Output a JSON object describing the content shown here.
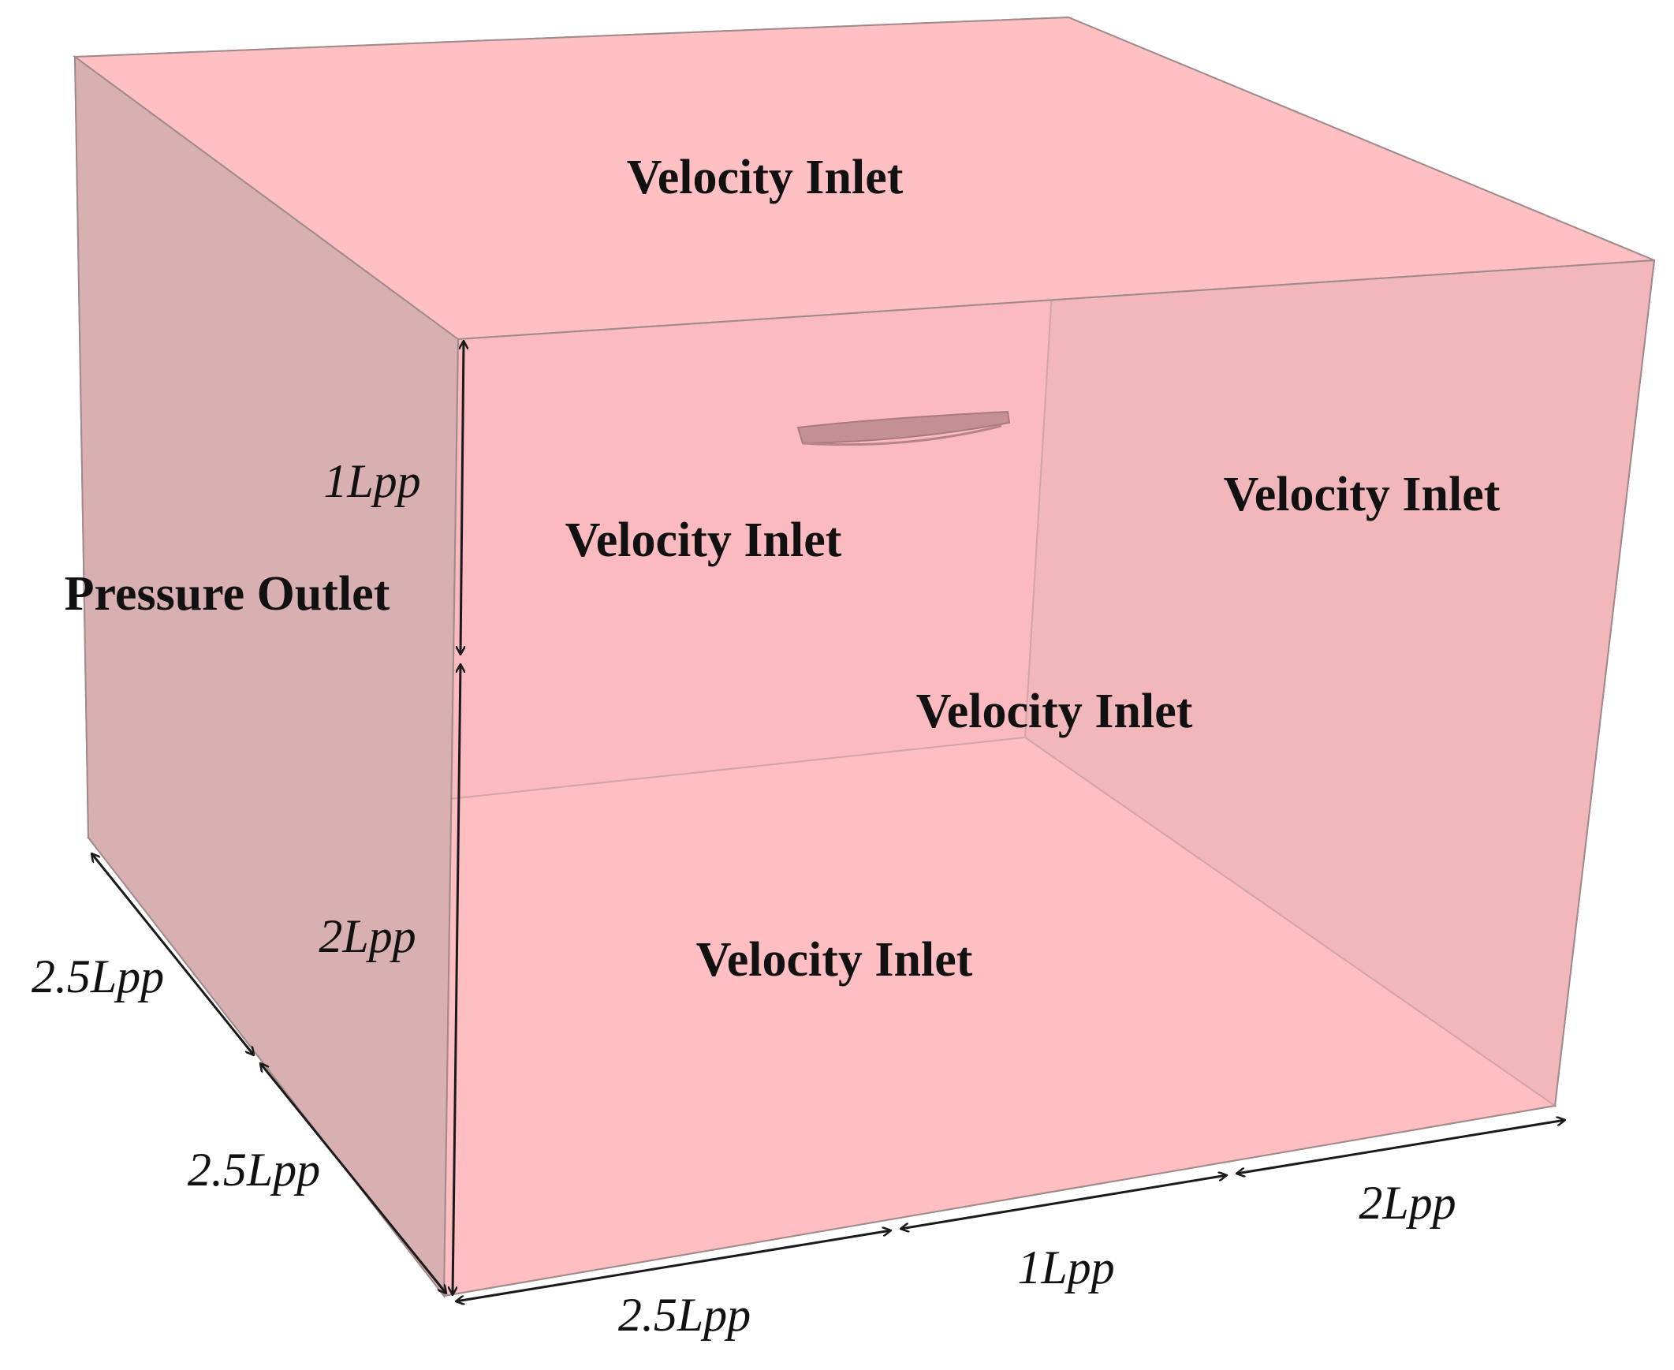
{
  "colors": {
    "face_light": "#ffc0c4",
    "face_dark": "#dfb2b4",
    "edge": "#a08a8a",
    "ship": "#c48f95",
    "arrow": "#1a1a1a",
    "text": "#111111"
  },
  "labels": {
    "top_face": "Velocity Inlet",
    "front_face": "Velocity Inlet",
    "right_face": "Velocity Inlet",
    "back_face": "Velocity Inlet",
    "bottom_face": "Velocity Inlet",
    "left_face": "Pressure Outlet"
  },
  "dimensions": {
    "height_upper": "1Lpp",
    "height_lower": "2Lpp",
    "depth_back": "2.5Lpp",
    "depth_front": "2.5Lpp",
    "length_aft": "2.5Lpp",
    "length_mid": "1Lpp",
    "length_fore": "2Lpp"
  }
}
